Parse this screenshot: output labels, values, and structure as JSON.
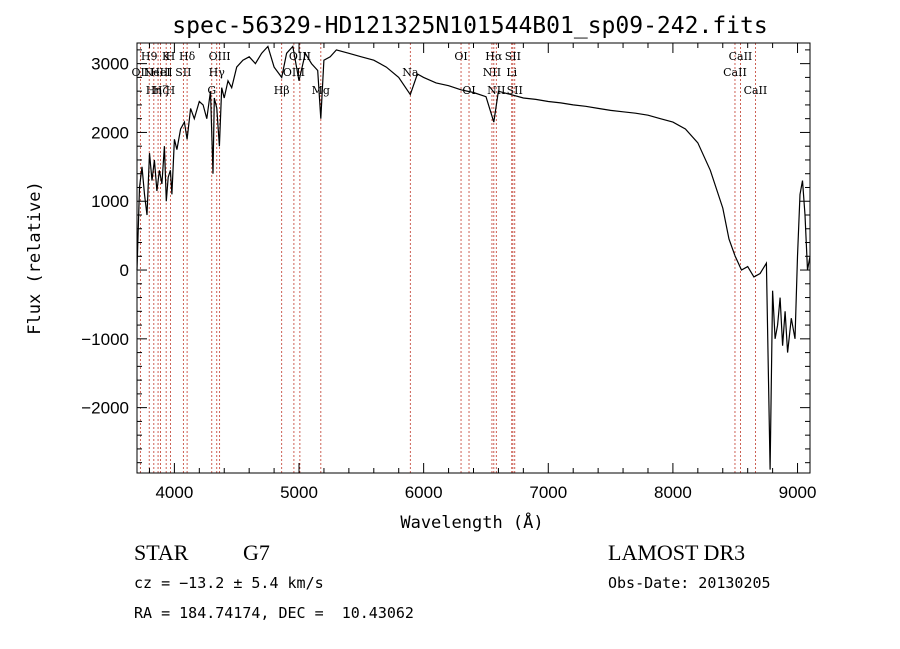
{
  "chart_data": {
    "type": "line",
    "title": "spec-56329-HD121325N101544B01_sp09-242.fits",
    "xlabel": "Wavelength (Å)",
    "ylabel": "Flux (relative)",
    "xlim": [
      3700,
      9100
    ],
    "ylim": [
      -2950,
      3300
    ],
    "xticks": [
      4000,
      5000,
      6000,
      7000,
      8000,
      9000
    ],
    "yticks": [
      -2000,
      -1000,
      0,
      1000,
      2000,
      3000
    ],
    "xtick_labels": [
      "4000",
      "5000",
      "6000",
      "7000",
      "8000",
      "9000"
    ],
    "ytick_labels": [
      "−2000",
      "−1000",
      "0",
      "1000",
      "2000",
      "3000"
    ],
    "series": [
      {
        "x": [
          3700,
          3720,
          3740,
          3760,
          3780,
          3800,
          3820,
          3840,
          3860,
          3880,
          3900,
          3920,
          3935,
          3950,
          3968,
          3980,
          4000,
          4020,
          4050,
          4080,
          4102,
          4130,
          4160,
          4200,
          4230,
          4260,
          4290,
          4310,
          4320,
          4340,
          4361,
          4380,
          4400,
          4430,
          4460,
          4500,
          4550,
          4600,
          4650,
          4700,
          4750,
          4800,
          4861,
          4900,
          4950,
          5000,
          5050,
          5100,
          5150,
          5175,
          5200,
          5250,
          5300,
          5400,
          5500,
          5600,
          5700,
          5800,
          5893,
          5950,
          6000,
          6100,
          6200,
          6300,
          6400,
          6500,
          6563,
          6600,
          6700,
          6800,
          6900,
          7000,
          7100,
          7200,
          7300,
          7400,
          7500,
          7600,
          7700,
          7800,
          7900,
          8000,
          8100,
          8200,
          8300,
          8400,
          8450,
          8500,
          8550,
          8600,
          8650,
          8700,
          8750,
          8780,
          8800,
          8820,
          8840,
          8860,
          8880,
          8900,
          8920,
          8950,
          8980,
          9000,
          9020,
          9040,
          9060,
          9080,
          9100
        ],
        "y": [
          0,
          1200,
          1500,
          1100,
          800,
          1700,
          1300,
          1600,
          1150,
          1450,
          1250,
          1800,
          1000,
          1350,
          1450,
          1100,
          1900,
          1750,
          2050,
          2150,
          1900,
          2350,
          2200,
          2450,
          2400,
          2200,
          2600,
          1400,
          2500,
          2350,
          1800,
          2650,
          2500,
          2750,
          2650,
          2950,
          3050,
          3100,
          3000,
          3150,
          3250,
          2950,
          2800,
          3150,
          3250,
          2750,
          3150,
          3000,
          2900,
          2200,
          3050,
          3100,
          3200,
          3150,
          3100,
          3050,
          2950,
          2800,
          2550,
          2850,
          2800,
          2720,
          2680,
          2620,
          2580,
          2520,
          2150,
          2600,
          2550,
          2500,
          2480,
          2450,
          2430,
          2400,
          2380,
          2350,
          2320,
          2300,
          2280,
          2250,
          2200,
          2150,
          2050,
          1850,
          1450,
          900,
          450,
          200,
          0,
          50,
          -100,
          -50,
          100,
          -2900,
          -300,
          -1000,
          -800,
          -400,
          -1100,
          -600,
          -1200,
          -700,
          -1000,
          200,
          1100,
          1300,
          800,
          0,
          200
        ]
      }
    ],
    "lines": [
      {
        "x": 3727,
        "labels": [
          "OII"
        ],
        "row": [
          1
        ]
      },
      {
        "x": 3798,
        "labels": [
          "H9"
        ],
        "row": [
          0
        ]
      },
      {
        "x": 3835,
        "labels": [
          "Hη"
        ],
        "row": [
          2
        ]
      },
      {
        "x": 3869,
        "labels": [
          "NeIII"
        ],
        "row": [
          1
        ]
      },
      {
        "x": 3889,
        "labels": [
          "Hζ",
          "HeI"
        ],
        "row": [
          2,
          1
        ]
      },
      {
        "x": 3934,
        "labels": [
          "K"
        ],
        "row": [
          0
        ]
      },
      {
        "x": 3968,
        "labels": [
          "H",
          "H"
        ],
        "row": [
          0,
          2
        ]
      },
      {
        "x": 4072,
        "labels": [
          "SII"
        ],
        "row": [
          1
        ]
      },
      {
        "x": 4102,
        "labels": [
          "Hδ"
        ],
        "row": [
          0
        ]
      },
      {
        "x": 4300,
        "labels": [
          "G"
        ],
        "row": [
          2
        ]
      },
      {
        "x": 4340,
        "labels": [
          "Hγ"
        ],
        "row": [
          1
        ]
      },
      {
        "x": 4363,
        "labels": [
          "OIII"
        ],
        "row": [
          0
        ]
      },
      {
        "x": 4861,
        "labels": [
          "Hβ"
        ],
        "row": [
          2
        ]
      },
      {
        "x": 4959,
        "labels": [
          "OIII"
        ],
        "row": [
          1
        ]
      },
      {
        "x": 5007,
        "labels": [
          "OIII"
        ],
        "row": [
          0
        ]
      },
      {
        "x": 5175,
        "labels": [
          "Mg"
        ],
        "row": [
          2
        ]
      },
      {
        "x": 5893,
        "labels": [
          "Na"
        ],
        "row": [
          1
        ]
      },
      {
        "x": 6300,
        "labels": [
          "OI"
        ],
        "row": [
          0
        ]
      },
      {
        "x": 6364,
        "labels": [
          "OI"
        ],
        "row": [
          2
        ]
      },
      {
        "x": 6548,
        "labels": [
          "NII"
        ],
        "row": [
          1
        ]
      },
      {
        "x": 6563,
        "labels": [
          "Hα"
        ],
        "row": [
          0
        ]
      },
      {
        "x": 6583,
        "labels": [
          "NII"
        ],
        "row": [
          2
        ]
      },
      {
        "x": 6707,
        "labels": [
          "Li"
        ],
        "row": [
          1
        ]
      },
      {
        "x": 6716,
        "labels": [
          "SII"
        ],
        "row": [
          0
        ]
      },
      {
        "x": 6731,
        "labels": [
          "SII"
        ],
        "row": [
          2
        ]
      },
      {
        "x": 8498,
        "labels": [
          "CaII"
        ],
        "row": [
          1
        ]
      },
      {
        "x": 8542,
        "labels": [
          "CaII"
        ],
        "row": [
          0
        ]
      },
      {
        "x": 8662,
        "labels": [
          "CaII"
        ],
        "row": [
          2
        ]
      }
    ]
  },
  "info": {
    "object_class": "STAR",
    "subclass": "G7",
    "survey": "LAMOST DR3",
    "cz": "cz = −13.2 ± 5.4 km/s",
    "obs_date": "Obs-Date: 20130205",
    "coords": "RA = 184.74174, DEC =  10.43062"
  },
  "colors": {
    "spectrum": "#000000",
    "line_markers": "#c0392b",
    "axes": "#000000"
  }
}
